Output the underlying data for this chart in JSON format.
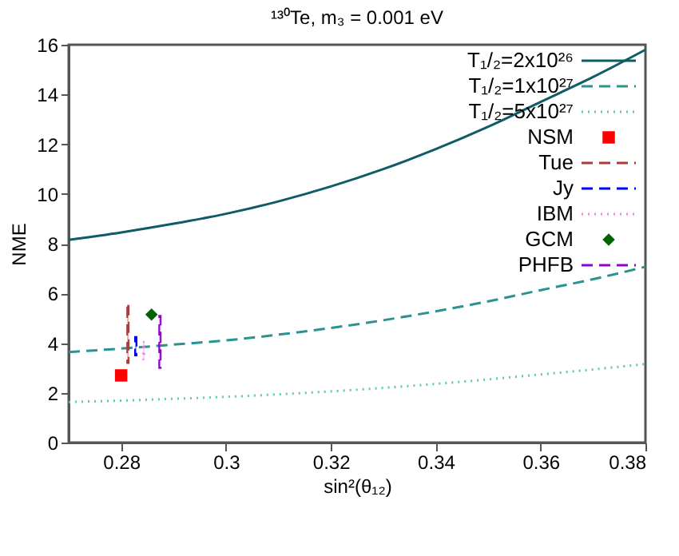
{
  "chart_data": {
    "type": "line",
    "title": "¹³⁰Te, m₃ = 0.001 eV",
    "xlabel": "sin²(θ₁₂)",
    "ylabel": "NME",
    "xlim": [
      0.27,
      0.38
    ],
    "xticks": [
      0.28,
      0.3,
      0.32,
      0.34,
      0.36,
      0.38
    ],
    "ylim": [
      0,
      16
    ],
    "yticks": [
      0,
      2,
      4,
      6,
      8,
      10,
      12,
      14,
      16
    ],
    "grid": false,
    "legend": "top right",
    "series": [
      {
        "name": "T₁/₂=2x10²⁶",
        "color": "#0f5c66",
        "line_style": "solid",
        "x": [
          0.27,
          0.28,
          0.29,
          0.3,
          0.31,
          0.32,
          0.33,
          0.34,
          0.35,
          0.36,
          0.37,
          0.38
        ],
        "values": [
          8.15,
          8.45,
          8.8,
          9.2,
          9.7,
          10.3,
          11.0,
          11.8,
          12.7,
          13.7,
          14.7,
          15.8
        ]
      },
      {
        "name": "T₁/₂=1x10²⁷",
        "color": "#2a9390",
        "line_style": "dashed",
        "x": [
          0.27,
          0.28,
          0.29,
          0.3,
          0.31,
          0.32,
          0.33,
          0.34,
          0.35,
          0.36,
          0.37,
          0.38
        ],
        "values": [
          3.64,
          3.78,
          3.94,
          4.11,
          4.34,
          4.61,
          4.92,
          5.28,
          5.68,
          6.13,
          6.57,
          7.07
        ]
      },
      {
        "name": "T₁/₂=5x10²⁷",
        "color": "#5cc8b8",
        "line_style": "dotted",
        "x": [
          0.27,
          0.28,
          0.29,
          0.3,
          0.31,
          0.32,
          0.33,
          0.34,
          0.35,
          0.36,
          0.37,
          0.38
        ],
        "values": [
          1.63,
          1.69,
          1.76,
          1.84,
          1.94,
          2.06,
          2.2,
          2.36,
          2.54,
          2.74,
          2.94,
          3.16
        ]
      },
      {
        "name": "NSM",
        "type": "scatter",
        "color": "#ff0000",
        "marker": "square",
        "x": [
          0.28
        ],
        "values": [
          2.7
        ]
      },
      {
        "name": "Tue",
        "type": "bar",
        "color": "#b03a3a",
        "line_style": "dashed",
        "x": [
          0.2813
        ],
        "base": [
          3.2
        ],
        "values": [
          2.3
        ]
      },
      {
        "name": "Jy",
        "type": "bar",
        "color": "#0000ff",
        "line_style": "dashed",
        "x": [
          0.2828
        ],
        "base": [
          3.5
        ],
        "values": [
          0.75
        ]
      },
      {
        "name": "IBM",
        "type": "bar",
        "color": "#ee82ee",
        "line_style": "dotted",
        "x": [
          0.2843
        ],
        "base": [
          3.35
        ],
        "values": [
          0.7
        ]
      },
      {
        "name": "GCM",
        "type": "scatter",
        "color": "#006400",
        "marker": "diamond",
        "x": [
          0.2858
        ],
        "values": [
          5.15
        ]
      },
      {
        "name": "PHFB",
        "type": "bar",
        "color": "#9400d3",
        "line_style": "dashed",
        "x": [
          0.2874
        ],
        "base": [
          3.0
        ],
        "values": [
          2.1
        ]
      }
    ]
  }
}
